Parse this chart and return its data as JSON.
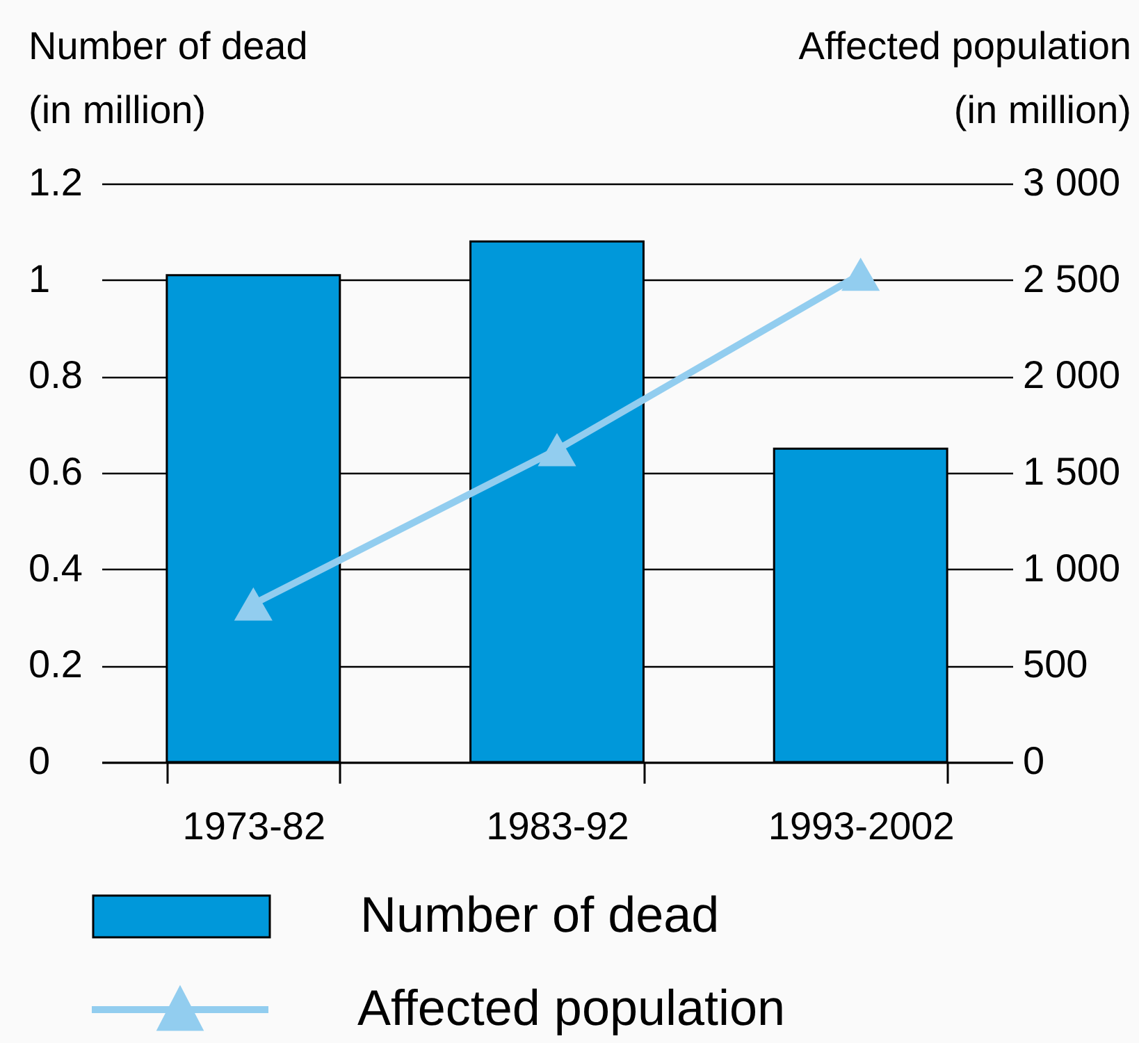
{
  "chart_data": {
    "type": "bar",
    "ylabel": "Number of dead\n(in million)",
    "y2label": "Affected population\n(in million)",
    "categories": [
      "1973-82",
      "1983-92",
      "1993-2002"
    ],
    "series": [
      {
        "name": "Number of dead",
        "color": "#0098da",
        "values": [
          1.01,
          1.08,
          0.65
        ]
      },
      {
        "name": "Affected population",
        "type": "line",
        "axis": "y2",
        "color": "#92cdef",
        "values": [
          820,
          1620,
          2530
        ]
      }
    ],
    "ylim": [
      0,
      1.2
    ],
    "yticks": [
      0,
      0.2,
      0.4,
      0.6,
      0.8,
      1,
      1.2
    ],
    "y2lim": [
      0,
      3000
    ],
    "y2ticks": [
      0,
      500,
      {
        "value": 1000,
        "label": "1 000"
      },
      {
        "value": 1500,
        "label": "1 500"
      },
      {
        "value": 2000,
        "label": "2 000"
      },
      {
        "value": 2500,
        "label": "2 500"
      },
      {
        "value": 3000,
        "label": "3 000"
      }
    ],
    "grid": "y",
    "legend": "bottom",
    "marker": "triangle"
  }
}
